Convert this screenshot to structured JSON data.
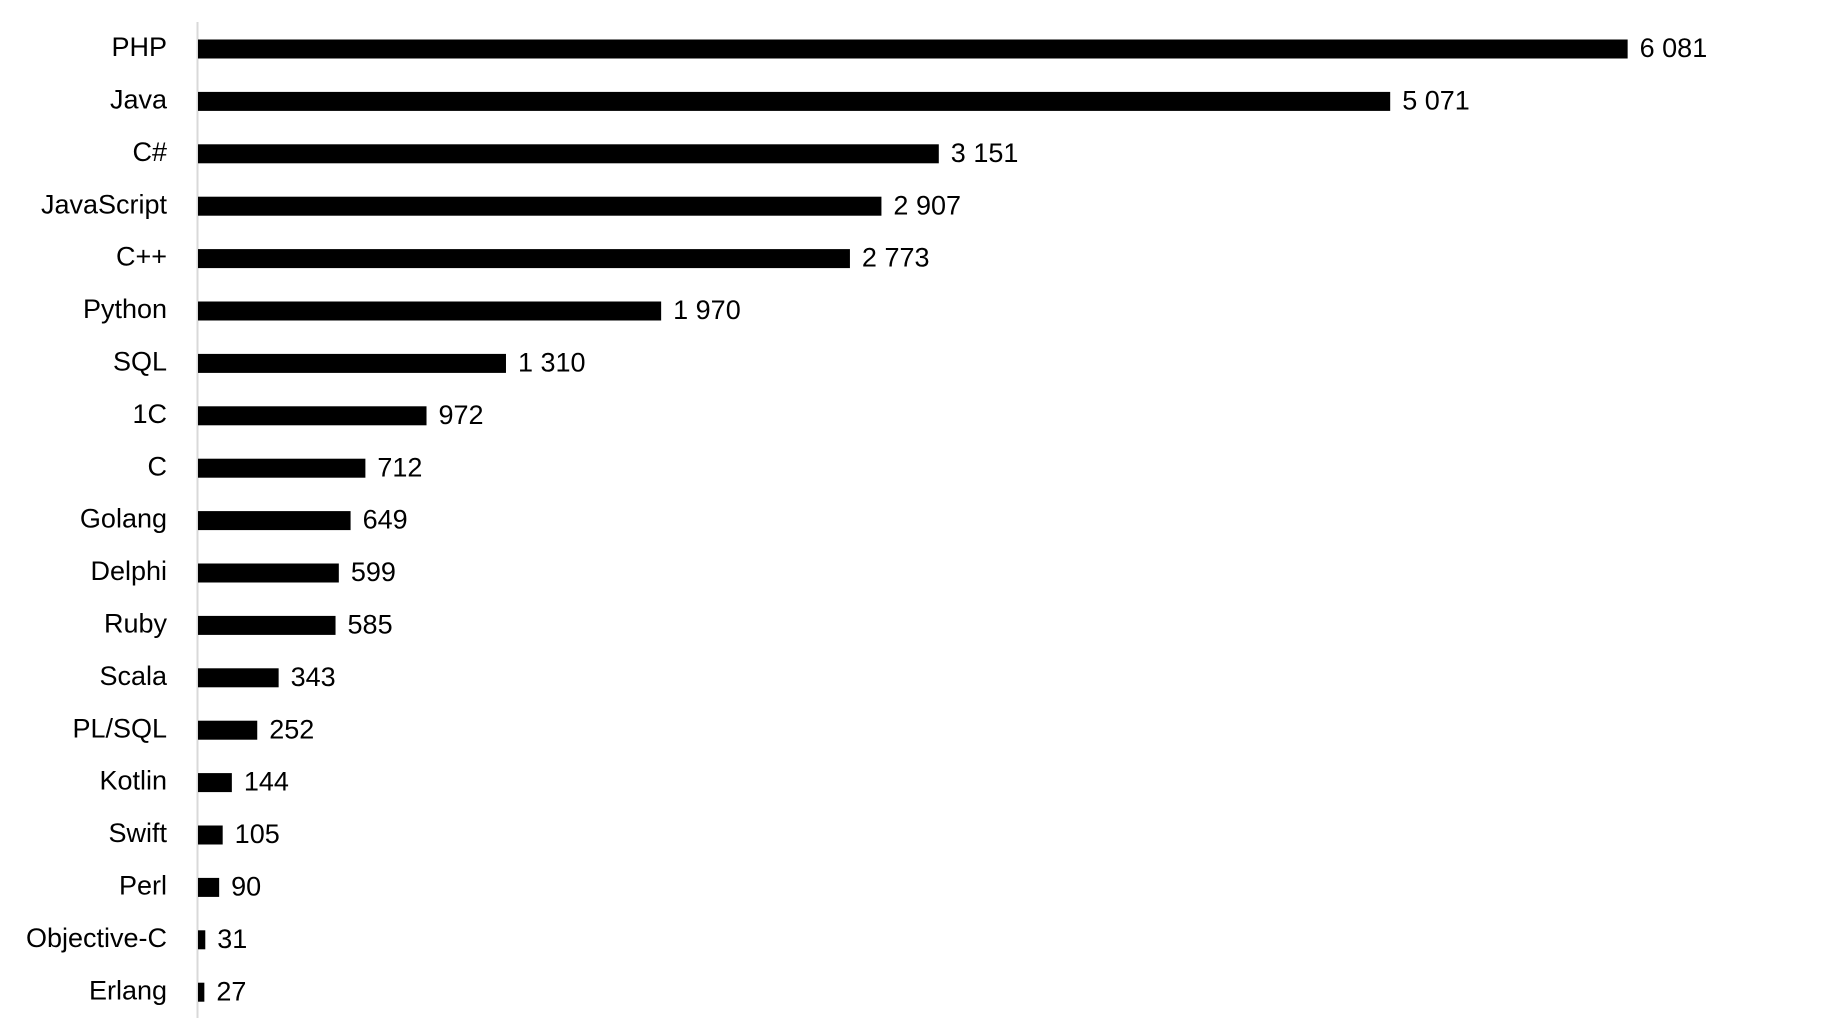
{
  "chart_data": {
    "type": "bar",
    "orientation": "horizontal",
    "color": "#000000",
    "categories": [
      "PHP",
      "Java",
      "C#",
      "JavaScript",
      "C++",
      "Python",
      "SQL",
      "1C",
      "C",
      "Golang",
      "Delphi",
      "Ruby",
      "Scala",
      "PL/SQL",
      "Kotlin",
      "Swift",
      "Perl",
      "Objective-C",
      "Erlang"
    ],
    "values": [
      6081,
      5071,
      3151,
      2907,
      2773,
      1970,
      1310,
      972,
      712,
      649,
      599,
      585,
      343,
      252,
      144,
      105,
      90,
      31,
      27
    ],
    "value_labels": [
      "6 081",
      "5 071",
      "3 151",
      "2 907",
      "2 773",
      "1 970",
      "1 310",
      "972",
      "712",
      "649",
      "599",
      "585",
      "343",
      "252",
      "144",
      "105",
      "90",
      "31",
      "27"
    ]
  }
}
